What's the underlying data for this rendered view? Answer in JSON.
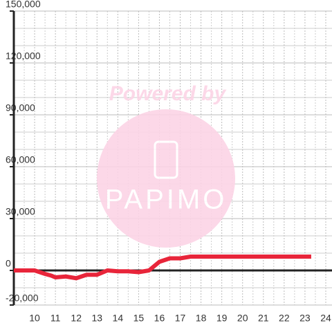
{
  "chart_data": {
    "type": "line",
    "x": [
      9,
      9.5,
      10,
      10.5,
      10.8,
      11,
      11.5,
      12,
      12.5,
      13,
      13.5,
      14,
      14.5,
      15,
      15.5,
      16,
      16.5,
      17,
      17.5,
      18,
      19,
      20,
      21,
      22,
      23,
      23.3
    ],
    "series": [
      {
        "color": "#e8253a",
        "values": [
          0,
          0,
          0,
          -2000,
          -3000,
          -4000,
          -3500,
          -4500,
          -2500,
          -2500,
          0,
          -500,
          -500,
          -1000,
          0,
          5000,
          7000,
          7000,
          8000,
          8000,
          8000,
          8000,
          8000,
          8000,
          8000,
          8000
        ]
      }
    ],
    "xlim": [
      9,
      24.3
    ],
    "xticks": [
      10,
      11,
      12,
      13,
      14,
      15,
      16,
      17,
      18,
      19,
      20,
      21,
      22,
      23,
      24
    ],
    "x_minor_gridlines": [
      9.5,
      10.5,
      11.5,
      12.5,
      13.5,
      14.5,
      15.5,
      16.5,
      17.5,
      18.5,
      19.5,
      20.5,
      21.5,
      22.5,
      23.5
    ],
    "ylim": [
      -20000,
      150000
    ],
    "yticks": [
      {
        "value": -20000,
        "label": "-20,000"
      },
      0,
      {
        "value": 30000,
        "label": "30,000"
      },
      {
        "value": 60000,
        "label": "60,000"
      },
      {
        "value": 90000,
        "label": "90,000"
      },
      {
        "value": 120000,
        "label": "120,000"
      },
      {
        "value": 150000,
        "label": "150,000"
      }
    ],
    "y_minor_gridlines": [
      -10000,
      10000,
      20000,
      40000,
      50000,
      70000,
      80000,
      100000,
      110000,
      130000,
      140000
    ],
    "grid": true,
    "watermark": {
      "text": "Powered by",
      "logo": "PAPIMO"
    }
  }
}
